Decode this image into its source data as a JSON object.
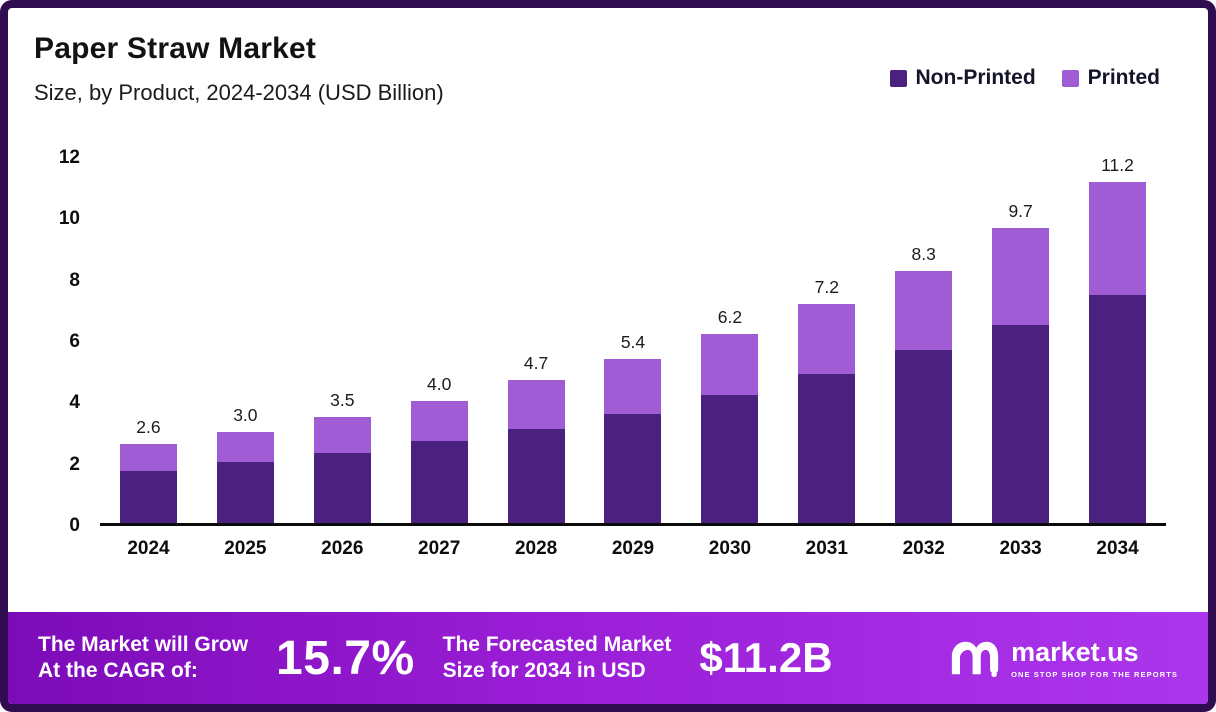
{
  "header": {
    "title": "Paper Straw Market",
    "subtitle": "Size, by Product, 2024-2034 (USD Billion)"
  },
  "legend": [
    {
      "label": "Non-Printed",
      "color": "#4b217f"
    },
    {
      "label": "Printed",
      "color": "#a05cd5"
    }
  ],
  "chart_data": {
    "type": "bar",
    "stacked": true,
    "title": "Paper Straw Market Size, by Product, 2024-2034 (USD Billion)",
    "xlabel": "",
    "ylabel": "USD Billion",
    "ylim": [
      0,
      12
    ],
    "yticks": [
      0,
      2,
      4,
      6,
      8,
      10,
      12
    ],
    "grid": false,
    "legend_position": "top-right",
    "categories": [
      "2024",
      "2025",
      "2026",
      "2027",
      "2028",
      "2029",
      "2030",
      "2031",
      "2032",
      "2033",
      "2034"
    ],
    "series": [
      {
        "name": "Non-Printed",
        "color": "#4b217f",
        "values": [
          1.7,
          2.0,
          2.3,
          2.7,
          3.1,
          3.6,
          4.2,
          4.9,
          5.7,
          6.5,
          7.5
        ]
      },
      {
        "name": "Printed",
        "color": "#a05cd5",
        "values": [
          0.9,
          1.0,
          1.2,
          1.3,
          1.6,
          1.8,
          2.0,
          2.3,
          2.6,
          3.2,
          3.7
        ]
      }
    ],
    "totals": [
      2.6,
      3.0,
      3.5,
      4.0,
      4.7,
      5.4,
      6.2,
      7.2,
      8.3,
      9.7,
      11.2
    ],
    "total_labels": [
      "2.6",
      "3.0",
      "3.5",
      "4.0",
      "4.7",
      "5.4",
      "6.2",
      "7.2",
      "8.3",
      "9.7",
      "11.2"
    ]
  },
  "banner": {
    "left_line1": "The Market will Grow",
    "left_line2": "At the CAGR of:",
    "cagr": "15.7%",
    "mid_line1": "The Forecasted Market",
    "mid_line2": "Size for 2034 in USD",
    "value": "$11.2B",
    "brand": "market.us",
    "tagline": "ONE STOP SHOP FOR THE REPORTS"
  },
  "colors": {
    "frame_border": "#2e0c4f",
    "non_printed": "#4b217f",
    "printed": "#a05cd5",
    "banner_gradient_start": "#7c0bb8",
    "banner_gradient_end": "#ac36ec",
    "axis_text": "#0d0d0d"
  }
}
